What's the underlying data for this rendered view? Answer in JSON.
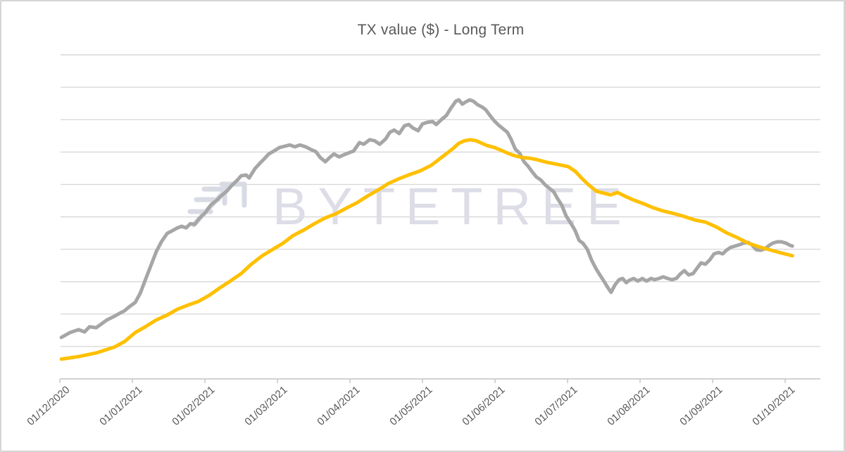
{
  "title": "TX value ($) - Long Term",
  "watermark": {
    "text": "BYTETREE",
    "logo": "bytetree-arrow-logo",
    "color": "#d9dbe4"
  },
  "style": {
    "title_color": "#595959",
    "label_color": "#595959",
    "gridline_color": "#d9d9d9",
    "axis_color": "#c3c3c3",
    "background": "#ffffff",
    "border_color": "#d5d5d5"
  },
  "chart_data": {
    "type": "line",
    "title": "TX value ($) - Long Term",
    "legend": "none",
    "x_axis": {
      "tick_labels": [
        "01/12/2020",
        "01/01/2021",
        "01/02/2021",
        "01/03/2021",
        "01/04/2021",
        "01/05/2021",
        "01/06/2021",
        "01/07/2021",
        "01/08/2021",
        "01/09/2021",
        "01/10/2021"
      ],
      "label_rotation_deg": -42,
      "x_unit": "months since 01/12/2020 tick (data extends ~0.1 month past last tick)"
    },
    "y_axis": {
      "tick_labels_visible": false,
      "gridline_count": 10,
      "y_unit": "gridline intervals above x-axis (no numeric labels shown)",
      "ylim": [
        0,
        10
      ]
    },
    "series": [
      {
        "id": "gray-series",
        "color": "#a6a6a6",
        "stroke_width": 5,
        "points": [
          [
            0.02,
            1.28
          ],
          [
            0.14,
            1.43
          ],
          [
            0.26,
            1.52
          ],
          [
            0.34,
            1.45
          ],
          [
            0.41,
            1.61
          ],
          [
            0.5,
            1.58
          ],
          [
            0.57,
            1.69
          ],
          [
            0.65,
            1.82
          ],
          [
            0.75,
            1.93
          ],
          [
            0.82,
            2.02
          ],
          [
            0.89,
            2.1
          ],
          [
            0.96,
            2.23
          ],
          [
            1.04,
            2.36
          ],
          [
            1.11,
            2.65
          ],
          [
            1.18,
            3.06
          ],
          [
            1.25,
            3.47
          ],
          [
            1.33,
            3.93
          ],
          [
            1.4,
            4.23
          ],
          [
            1.48,
            4.49
          ],
          [
            1.54,
            4.56
          ],
          [
            1.62,
            4.66
          ],
          [
            1.68,
            4.71
          ],
          [
            1.74,
            4.66
          ],
          [
            1.8,
            4.79
          ],
          [
            1.86,
            4.77
          ],
          [
            1.93,
            4.97
          ],
          [
            2.01,
            5.14
          ],
          [
            2.08,
            5.36
          ],
          [
            2.16,
            5.51
          ],
          [
            2.22,
            5.64
          ],
          [
            2.3,
            5.79
          ],
          [
            2.37,
            5.97
          ],
          [
            2.45,
            6.14
          ],
          [
            2.5,
            6.27
          ],
          [
            2.57,
            6.29
          ],
          [
            2.61,
            6.2
          ],
          [
            2.69,
            6.49
          ],
          [
            2.76,
            6.66
          ],
          [
            2.81,
            6.77
          ],
          [
            2.88,
            6.94
          ],
          [
            2.95,
            7.03
          ],
          [
            3.03,
            7.14
          ],
          [
            3.1,
            7.18
          ],
          [
            3.17,
            7.22
          ],
          [
            3.24,
            7.16
          ],
          [
            3.31,
            7.22
          ],
          [
            3.39,
            7.16
          ],
          [
            3.47,
            7.07
          ],
          [
            3.53,
            7.01
          ],
          [
            3.59,
            6.83
          ],
          [
            3.66,
            6.7
          ],
          [
            3.72,
            6.83
          ],
          [
            3.78,
            6.94
          ],
          [
            3.85,
            6.85
          ],
          [
            3.92,
            6.92
          ],
          [
            3.99,
            6.98
          ],
          [
            4.05,
            7.03
          ],
          [
            4.13,
            7.29
          ],
          [
            4.19,
            7.24
          ],
          [
            4.27,
            7.38
          ],
          [
            4.34,
            7.35
          ],
          [
            4.41,
            7.24
          ],
          [
            4.49,
            7.4
          ],
          [
            4.55,
            7.61
          ],
          [
            4.61,
            7.68
          ],
          [
            4.68,
            7.57
          ],
          [
            4.75,
            7.81
          ],
          [
            4.81,
            7.85
          ],
          [
            4.87,
            7.74
          ],
          [
            4.94,
            7.66
          ],
          [
            5.0,
            7.87
          ],
          [
            5.07,
            7.92
          ],
          [
            5.14,
            7.94
          ],
          [
            5.19,
            7.85
          ],
          [
            5.26,
            8.0
          ],
          [
            5.33,
            8.13
          ],
          [
            5.39,
            8.35
          ],
          [
            5.46,
            8.57
          ],
          [
            5.5,
            8.61
          ],
          [
            5.55,
            8.48
          ],
          [
            5.6,
            8.55
          ],
          [
            5.65,
            8.61
          ],
          [
            5.7,
            8.57
          ],
          [
            5.76,
            8.46
          ],
          [
            5.82,
            8.39
          ],
          [
            5.87,
            8.31
          ],
          [
            5.93,
            8.13
          ],
          [
            5.99,
            7.96
          ],
          [
            6.05,
            7.83
          ],
          [
            6.11,
            7.72
          ],
          [
            6.17,
            7.61
          ],
          [
            6.22,
            7.4
          ],
          [
            6.28,
            7.09
          ],
          [
            6.34,
            6.96
          ],
          [
            6.4,
            6.7
          ],
          [
            6.46,
            6.55
          ],
          [
            6.51,
            6.4
          ],
          [
            6.57,
            6.23
          ],
          [
            6.63,
            6.14
          ],
          [
            6.69,
            5.99
          ],
          [
            6.75,
            5.88
          ],
          [
            6.81,
            5.77
          ],
          [
            6.86,
            5.57
          ],
          [
            6.92,
            5.36
          ],
          [
            6.98,
            5.03
          ],
          [
            7.04,
            4.82
          ],
          [
            7.1,
            4.6
          ],
          [
            7.16,
            4.27
          ],
          [
            7.21,
            4.19
          ],
          [
            7.27,
            4.01
          ],
          [
            7.33,
            3.67
          ],
          [
            7.39,
            3.41
          ],
          [
            7.45,
            3.19
          ],
          [
            7.5,
            3.02
          ],
          [
            7.56,
            2.8
          ],
          [
            7.6,
            2.67
          ],
          [
            7.65,
            2.89
          ],
          [
            7.71,
            3.06
          ],
          [
            7.76,
            3.1
          ],
          [
            7.81,
            2.97
          ],
          [
            7.85,
            3.04
          ],
          [
            7.91,
            3.1
          ],
          [
            7.97,
            3.02
          ],
          [
            8.03,
            3.1
          ],
          [
            8.09,
            3.02
          ],
          [
            8.15,
            3.1
          ],
          [
            8.2,
            3.06
          ],
          [
            8.26,
            3.1
          ],
          [
            8.32,
            3.15
          ],
          [
            8.38,
            3.1
          ],
          [
            8.44,
            3.06
          ],
          [
            8.5,
            3.1
          ],
          [
            8.55,
            3.23
          ],
          [
            8.61,
            3.34
          ],
          [
            8.67,
            3.21
          ],
          [
            8.73,
            3.25
          ],
          [
            8.79,
            3.43
          ],
          [
            8.84,
            3.58
          ],
          [
            8.9,
            3.54
          ],
          [
            8.96,
            3.67
          ],
          [
            9.02,
            3.86
          ],
          [
            9.08,
            3.9
          ],
          [
            9.14,
            3.86
          ],
          [
            9.19,
            3.97
          ],
          [
            9.25,
            4.06
          ],
          [
            9.31,
            4.1
          ],
          [
            9.37,
            4.14
          ],
          [
            9.43,
            4.19
          ],
          [
            9.49,
            4.21
          ],
          [
            9.54,
            4.14
          ],
          [
            9.6,
            3.99
          ],
          [
            9.66,
            3.97
          ],
          [
            9.72,
            4.01
          ],
          [
            9.78,
            4.12
          ],
          [
            9.83,
            4.19
          ],
          [
            9.89,
            4.23
          ],
          [
            9.95,
            4.23
          ],
          [
            10.01,
            4.19
          ],
          [
            10.07,
            4.12
          ],
          [
            10.1,
            4.1
          ]
        ]
      },
      {
        "id": "gold-series",
        "color": "#ffc000",
        "stroke_width": 5,
        "points": [
          [
            0.02,
            0.61
          ],
          [
            0.26,
            0.69
          ],
          [
            0.5,
            0.8
          ],
          [
            0.75,
            0.98
          ],
          [
            0.89,
            1.15
          ],
          [
            1.04,
            1.43
          ],
          [
            1.18,
            1.61
          ],
          [
            1.33,
            1.82
          ],
          [
            1.48,
            1.97
          ],
          [
            1.62,
            2.15
          ],
          [
            1.77,
            2.28
          ],
          [
            1.91,
            2.39
          ],
          [
            2.06,
            2.58
          ],
          [
            2.2,
            2.8
          ],
          [
            2.35,
            3.02
          ],
          [
            2.5,
            3.25
          ],
          [
            2.64,
            3.54
          ],
          [
            2.79,
            3.8
          ],
          [
            2.93,
            3.99
          ],
          [
            3.08,
            4.19
          ],
          [
            3.22,
            4.43
          ],
          [
            3.37,
            4.6
          ],
          [
            3.51,
            4.79
          ],
          [
            3.66,
            4.97
          ],
          [
            3.81,
            5.1
          ],
          [
            3.95,
            5.27
          ],
          [
            4.1,
            5.44
          ],
          [
            4.24,
            5.64
          ],
          [
            4.39,
            5.83
          ],
          [
            4.53,
            6.03
          ],
          [
            4.68,
            6.18
          ],
          [
            4.83,
            6.31
          ],
          [
            4.97,
            6.42
          ],
          [
            5.12,
            6.59
          ],
          [
            5.26,
            6.83
          ],
          [
            5.41,
            7.09
          ],
          [
            5.5,
            7.27
          ],
          [
            5.58,
            7.35
          ],
          [
            5.66,
            7.38
          ],
          [
            5.74,
            7.35
          ],
          [
            5.82,
            7.27
          ],
          [
            5.89,
            7.2
          ],
          [
            5.99,
            7.14
          ],
          [
            6.09,
            7.05
          ],
          [
            6.18,
            6.96
          ],
          [
            6.28,
            6.88
          ],
          [
            6.38,
            6.83
          ],
          [
            6.48,
            6.81
          ],
          [
            6.57,
            6.77
          ],
          [
            6.72,
            6.68
          ],
          [
            6.86,
            6.62
          ],
          [
            7.01,
            6.55
          ],
          [
            7.11,
            6.4
          ],
          [
            7.2,
            6.18
          ],
          [
            7.3,
            5.97
          ],
          [
            7.4,
            5.79
          ],
          [
            7.5,
            5.73
          ],
          [
            7.59,
            5.68
          ],
          [
            7.69,
            5.75
          ],
          [
            7.79,
            5.64
          ],
          [
            7.9,
            5.53
          ],
          [
            8.03,
            5.42
          ],
          [
            8.17,
            5.29
          ],
          [
            8.32,
            5.18
          ],
          [
            8.47,
            5.1
          ],
          [
            8.61,
            5.01
          ],
          [
            8.76,
            4.9
          ],
          [
            8.9,
            4.84
          ],
          [
            9.05,
            4.69
          ],
          [
            9.19,
            4.51
          ],
          [
            9.34,
            4.36
          ],
          [
            9.49,
            4.19
          ],
          [
            9.63,
            4.08
          ],
          [
            9.78,
            3.99
          ],
          [
            9.92,
            3.9
          ],
          [
            10.1,
            3.8
          ]
        ]
      }
    ]
  }
}
